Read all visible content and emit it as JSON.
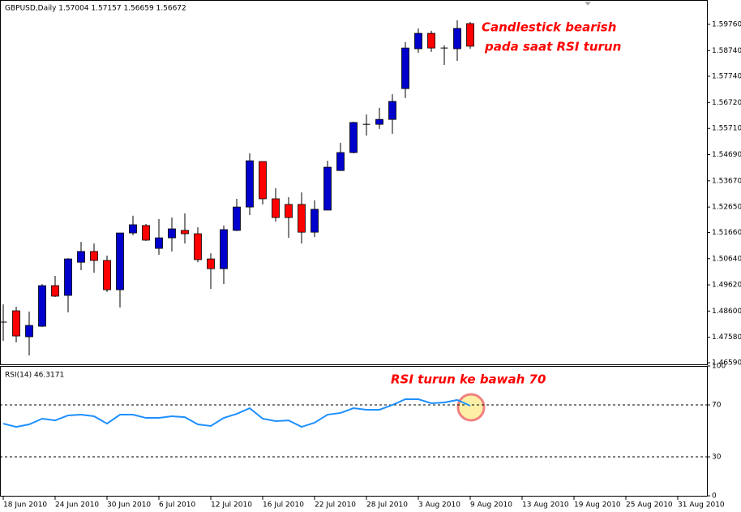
{
  "chart_data": [
    {
      "type": "candlestick",
      "title": "GBPUSD,Daily  1.57004 1.57157 1.56659 1.56672",
      "annotation": [
        "Candlestick bearish",
        "pada saat RSI turun"
      ],
      "annotation_color": "#ff0000",
      "up_color": "#0000cc",
      "down_color": "#ff0000",
      "candles": [
        {
          "open": 1.4817,
          "high": 1.4886,
          "low": 1.4744,
          "close": 1.4817
        },
        {
          "open": 1.4861,
          "high": 1.4877,
          "low": 1.4738,
          "close": 1.4763
        },
        {
          "open": 1.476,
          "high": 1.4858,
          "low": 1.4687,
          "close": 1.4804
        },
        {
          "open": 1.4801,
          "high": 1.4965,
          "low": 1.4798,
          "close": 1.4959
        },
        {
          "open": 1.4959,
          "high": 1.4997,
          "low": 1.4915,
          "close": 1.4918
        },
        {
          "open": 1.4921,
          "high": 1.5066,
          "low": 1.4855,
          "close": 1.5063
        },
        {
          "open": 1.505,
          "high": 1.5129,
          "low": 1.5019,
          "close": 1.5092
        },
        {
          "open": 1.5092,
          "high": 1.5123,
          "low": 1.5009,
          "close": 1.5057
        },
        {
          "open": 1.5057,
          "high": 1.5076,
          "low": 1.4934,
          "close": 1.4943
        },
        {
          "open": 1.4943,
          "high": 1.5164,
          "low": 1.4874,
          "close": 1.5164
        },
        {
          "open": 1.5164,
          "high": 1.5231,
          "low": 1.5155,
          "close": 1.5196
        },
        {
          "open": 1.5193,
          "high": 1.5199,
          "low": 1.5133,
          "close": 1.5136
        },
        {
          "open": 1.5104,
          "high": 1.5218,
          "low": 1.5079,
          "close": 1.5145
        },
        {
          "open": 1.5145,
          "high": 1.5224,
          "low": 1.5092,
          "close": 1.518
        },
        {
          "open": 1.5174,
          "high": 1.524,
          "low": 1.5123,
          "close": 1.5161
        },
        {
          "open": 1.5161,
          "high": 1.5186,
          "low": 1.505,
          "close": 1.506
        },
        {
          "open": 1.5063,
          "high": 1.5085,
          "low": 1.4946,
          "close": 1.5025
        },
        {
          "open": 1.5025,
          "high": 1.5193,
          "low": 1.4965,
          "close": 1.5177
        },
        {
          "open": 1.5174,
          "high": 1.5297,
          "low": 1.5171,
          "close": 1.5265
        },
        {
          "open": 1.5265,
          "high": 1.5474,
          "low": 1.5234,
          "close": 1.5445
        },
        {
          "open": 1.5442,
          "high": 1.5442,
          "low": 1.5275,
          "close": 1.5297
        },
        {
          "open": 1.5297,
          "high": 1.5338,
          "low": 1.5208,
          "close": 1.5224
        },
        {
          "open": 1.5275,
          "high": 1.5303,
          "low": 1.5145,
          "close": 1.5224
        },
        {
          "open": 1.5275,
          "high": 1.5322,
          "low": 1.5123,
          "close": 1.5167
        },
        {
          "open": 1.5167,
          "high": 1.5291,
          "low": 1.5148,
          "close": 1.5256
        },
        {
          "open": 1.5253,
          "high": 1.5445,
          "low": 1.5253,
          "close": 1.542
        },
        {
          "open": 1.5407,
          "high": 1.5515,
          "low": 1.5407,
          "close": 1.5477
        },
        {
          "open": 1.5477,
          "high": 1.5597,
          "low": 1.5474,
          "close": 1.5594
        },
        {
          "open": 1.5587,
          "high": 1.5625,
          "low": 1.5543,
          "close": 1.5587
        },
        {
          "open": 1.5587,
          "high": 1.5651,
          "low": 1.5569,
          "close": 1.5606
        },
        {
          "open": 1.5606,
          "high": 1.5704,
          "low": 1.555,
          "close": 1.5676
        },
        {
          "open": 1.5726,
          "high": 1.5907,
          "low": 1.5689,
          "close": 1.5884
        },
        {
          "open": 1.5881,
          "high": 1.596,
          "low": 1.5865,
          "close": 1.5941
        },
        {
          "open": 1.5941,
          "high": 1.5951,
          "low": 1.5869,
          "close": 1.5884
        },
        {
          "open": 1.5884,
          "high": 1.5894,
          "low": 1.5818,
          "close": 1.5884
        },
        {
          "open": 1.5881,
          "high": 1.5992,
          "low": 1.5834,
          "close": 1.596
        },
        {
          "open": 1.5979,
          "high": 1.5985,
          "low": 1.5881,
          "close": 1.5891
        }
      ],
      "ylim": [
        1.46495,
        1.60708
      ],
      "yticks": [
        {
          "value": 1.5976,
          "label": "1.59760"
        },
        {
          "value": 1.5874,
          "label": "1.58740"
        },
        {
          "value": 1.5774,
          "label": "1.57740"
        },
        {
          "value": 1.5672,
          "label": "1.56720"
        },
        {
          "value": 1.5571,
          "label": "1.55710"
        },
        {
          "value": 1.5469,
          "label": "1.54690"
        },
        {
          "value": 1.5367,
          "label": "1.53670"
        },
        {
          "value": 1.5265,
          "label": "1.52650"
        },
        {
          "value": 1.5166,
          "label": "1.51660"
        },
        {
          "value": 1.5064,
          "label": "1.50640"
        },
        {
          "value": 1.4962,
          "label": "1.49620"
        },
        {
          "value": 1.486,
          "label": "1.48600"
        },
        {
          "value": 1.4758,
          "label": "1.47580"
        },
        {
          "value": 1.4659,
          "label": "1.46590"
        }
      ],
      "xlim": [
        -0.25,
        54.25
      ],
      "xticks": [
        {
          "value": 0,
          "label": "18 Jun 2010"
        },
        {
          "value": 4,
          "label": "24 Jun 2010"
        },
        {
          "value": 8,
          "label": "30 Jun 2010"
        },
        {
          "value": 12,
          "label": "6 Jul 2010"
        },
        {
          "value": 16,
          "label": "12 Jul 2010"
        },
        {
          "value": 20,
          "label": "16 Jul 2010"
        },
        {
          "value": 24,
          "label": "22 Jul 2010"
        },
        {
          "value": 28,
          "label": "28 Jul 2010"
        },
        {
          "value": 32,
          "label": "3 Aug 2010"
        },
        {
          "value": 36,
          "label": "9 Aug 2010"
        },
        {
          "value": 40,
          "label": "13 Aug 2010"
        },
        {
          "value": 44,
          "label": "19 Aug 2010"
        },
        {
          "value": 48,
          "label": "25 Aug 2010"
        },
        {
          "value": 52,
          "label": "31 Aug 2010"
        }
      ]
    },
    {
      "type": "line",
      "title": "RSI(14) 46.3171",
      "annotation": "RSI turun ke bawah 70",
      "annotation_color": "#ff0000",
      "color": "#1e90ff",
      "values": [
        55.6,
        53.1,
        55,
        59.4,
        58.1,
        61.9,
        62.5,
        61.3,
        55.6,
        62.5,
        62.5,
        60,
        60,
        61.3,
        60.6,
        55,
        53.8,
        60,
        63.1,
        67.5,
        59.4,
        57.5,
        58.1,
        53.1,
        56.3,
        62.5,
        63.8,
        67.5,
        66.3,
        66.3,
        70,
        74.4,
        74.4,
        71.3,
        71.9,
        73.8,
        69.4
      ],
      "levels": [
        70,
        30
      ],
      "ylim": [
        -0.6,
        99.4
      ],
      "yticks": [
        100,
        70,
        30,
        0
      ]
    }
  ]
}
